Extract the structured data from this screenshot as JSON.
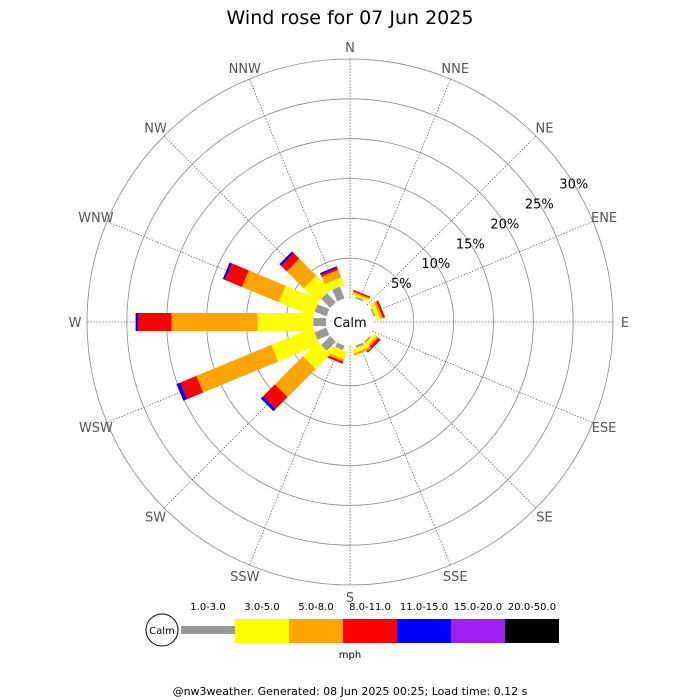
{
  "chart_data": {
    "type": "wind-rose",
    "title": "Wind rose for 07 Jun 2025",
    "footer": "@nw3weather. Generated: 08 Jun 2025 00:25; Load time: 0.12 s",
    "directions": [
      "N",
      "NNE",
      "NE",
      "ENE",
      "E",
      "ESE",
      "SE",
      "SSE",
      "S",
      "SSW",
      "SW",
      "WSW",
      "W",
      "WNW",
      "NW",
      "NNW"
    ],
    "radial_ticks": [
      "5%",
      "10%",
      "15%",
      "20%",
      "25%",
      "30%"
    ],
    "radial_max": 30,
    "calm_label": "Calm",
    "unit": "mph",
    "speed_bins": [
      {
        "label": "1.0-3.0",
        "color": "#999999"
      },
      {
        "label": "3.0-5.0",
        "color": "#ffff00"
      },
      {
        "label": "5.0-8.0",
        "color": "#ffa500"
      },
      {
        "label": "8.0-11.0",
        "color": "#ff0000"
      },
      {
        "label": "11.0-15.0",
        "color": "#0000ff"
      },
      {
        "label": "15.0-20.0",
        "color": "#a020f0"
      },
      {
        "label": "20.0-50.0",
        "color": "#000000"
      }
    ],
    "series": [
      {
        "direction": "N",
        "values": [
          0,
          0,
          0,
          0,
          0,
          0,
          0
        ]
      },
      {
        "direction": "NNE",
        "values": [
          0.2,
          0.3,
          0.2,
          0.2,
          0,
          0,
          0
        ]
      },
      {
        "direction": "NE",
        "values": [
          0,
          0,
          0,
          0,
          0,
          0,
          0
        ]
      },
      {
        "direction": "ENE",
        "values": [
          0.2,
          0.5,
          0.3,
          0.3,
          0,
          0,
          0
        ]
      },
      {
        "direction": "E",
        "values": [
          0,
          0,
          0,
          0,
          0,
          0,
          0
        ]
      },
      {
        "direction": "ESE",
        "values": [
          0,
          0,
          0,
          0,
          0,
          0,
          0
        ]
      },
      {
        "direction": "SE",
        "values": [
          0.2,
          0.4,
          0.3,
          0.4,
          0,
          0,
          0
        ]
      },
      {
        "direction": "SSE",
        "values": [
          0.3,
          0.5,
          0.3,
          0,
          0,
          0,
          0
        ]
      },
      {
        "direction": "S",
        "values": [
          0,
          0,
          0,
          0,
          0,
          0,
          0
        ]
      },
      {
        "direction": "SSW",
        "values": [
          0.6,
          1.0,
          0.3,
          0.3,
          0,
          0,
          0
        ]
      },
      {
        "direction": "SW",
        "values": [
          1.6,
          2.6,
          5.0,
          2.1,
          0.4,
          0,
          0
        ]
      },
      {
        "direction": "WSW",
        "values": [
          1.6,
          5.6,
          10.2,
          2.2,
          0.5,
          0,
          0
        ]
      },
      {
        "direction": "W",
        "values": [
          1.6,
          7.0,
          10.8,
          4.2,
          0.3,
          0,
          0
        ]
      },
      {
        "direction": "WNW",
        "values": [
          1.6,
          4.6,
          5.0,
          2.3,
          0.3,
          0,
          0
        ]
      },
      {
        "direction": "NW",
        "values": [
          1.6,
          2.5,
          3.0,
          1.0,
          0.3,
          0,
          0
        ]
      },
      {
        "direction": "NNW",
        "values": [
          1.6,
          1.0,
          1.0,
          0.3,
          0.2,
          0,
          0
        ]
      }
    ]
  }
}
